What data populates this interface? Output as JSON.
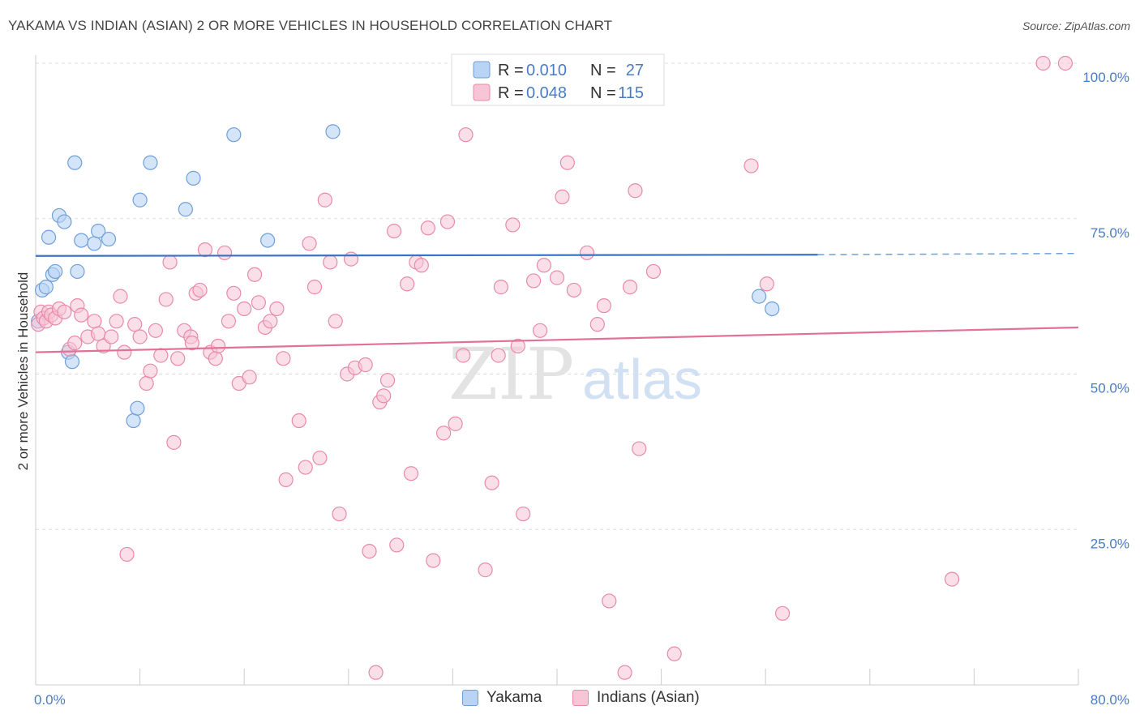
{
  "title": "YAKAMA VS INDIAN (ASIAN) 2 OR MORE VEHICLES IN HOUSEHOLD CORRELATION CHART",
  "source": "Source: ZipAtlas.com",
  "watermark": {
    "zip": "ZIP",
    "atlas": "atlas"
  },
  "colors": {
    "yakama_fill": "#b9d3f5",
    "yakama_stroke": "#6f9fd8",
    "yakama_line": "#3a73c2",
    "indian_fill": "#f7c5d6",
    "indian_stroke": "#e88aa8",
    "indian_line": "#e2719a",
    "tick_text": "#4a7cc4",
    "grid": "#dddddd"
  },
  "legend": {
    "rows": [
      {
        "r_label": "R = ",
        "r_value": "0.010",
        "n_label": "N = ",
        "n_value": "27"
      },
      {
        "r_label": "R = ",
        "r_value": "0.048",
        "n_label": "N = ",
        "n_value": "115"
      }
    ]
  },
  "bottom_legend": {
    "yakama": "Yakama",
    "indian": "Indians (Asian)"
  },
  "chart_data": {
    "type": "scatter",
    "xlabel": "",
    "ylabel": "2 or more Vehicles in Household",
    "xlim": [
      0,
      80
    ],
    "ylim": [
      0,
      100
    ],
    "x_tick_labels": [
      "0.0%",
      "80.0%"
    ],
    "y_ticks": [
      25,
      50,
      75,
      100
    ],
    "y_tick_labels": [
      "25.0%",
      "50.0%",
      "75.0%",
      "100.0%"
    ],
    "grid": true,
    "legend_position": "top-center",
    "series": [
      {
        "name": "Yakama",
        "trend": {
          "x": [
            0,
            60
          ],
          "y": [
            69.0,
            69.2
          ],
          "dashed_to": [
            80,
            69.4
          ]
        },
        "points": [
          [
            0.2,
            58.5
          ],
          [
            0.5,
            63.5
          ],
          [
            0.8,
            64.0
          ],
          [
            1.0,
            72.0
          ],
          [
            1.3,
            66.0
          ],
          [
            1.5,
            66.5
          ],
          [
            1.8,
            75.5
          ],
          [
            2.2,
            74.5
          ],
          [
            2.5,
            53.5
          ],
          [
            2.8,
            52.0
          ],
          [
            3.0,
            84.0
          ],
          [
            3.2,
            66.5
          ],
          [
            3.5,
            71.5
          ],
          [
            4.5,
            71.0
          ],
          [
            4.8,
            73.0
          ],
          [
            5.6,
            71.7
          ],
          [
            7.5,
            42.5
          ],
          [
            7.8,
            44.5
          ],
          [
            8.0,
            78.0
          ],
          [
            8.8,
            84.0
          ],
          [
            11.5,
            76.5
          ],
          [
            12.1,
            81.5
          ],
          [
            15.2,
            88.5
          ],
          [
            17.8,
            71.5
          ],
          [
            22.8,
            89.0
          ],
          [
            55.5,
            62.5
          ],
          [
            56.5,
            60.5
          ]
        ]
      },
      {
        "name": "Indians (Asian)",
        "trend": {
          "x": [
            0,
            80
          ],
          "y": [
            53.5,
            57.5
          ]
        },
        "points": [
          [
            0.2,
            58.0
          ],
          [
            0.4,
            60.0
          ],
          [
            0.6,
            59.0
          ],
          [
            0.8,
            58.5
          ],
          [
            1.0,
            60.0
          ],
          [
            1.2,
            59.5
          ],
          [
            1.5,
            59.0
          ],
          [
            1.8,
            60.5
          ],
          [
            2.2,
            60.0
          ],
          [
            2.6,
            54.0
          ],
          [
            3.0,
            55.0
          ],
          [
            3.2,
            61.0
          ],
          [
            3.5,
            59.5
          ],
          [
            4.0,
            56.0
          ],
          [
            4.5,
            58.5
          ],
          [
            4.8,
            56.5
          ],
          [
            5.2,
            54.5
          ],
          [
            5.8,
            56.0
          ],
          [
            6.2,
            58.5
          ],
          [
            6.5,
            62.5
          ],
          [
            6.8,
            53.5
          ],
          [
            7.0,
            21.0
          ],
          [
            7.6,
            58.0
          ],
          [
            8.0,
            56.0
          ],
          [
            8.5,
            48.5
          ],
          [
            8.8,
            50.5
          ],
          [
            9.2,
            57.0
          ],
          [
            9.6,
            53.0
          ],
          [
            10.0,
            62.0
          ],
          [
            10.3,
            68.0
          ],
          [
            10.6,
            39.0
          ],
          [
            10.9,
            52.5
          ],
          [
            11.4,
            57.0
          ],
          [
            11.9,
            56.0
          ],
          [
            12.3,
            63.0
          ],
          [
            12.6,
            63.5
          ],
          [
            13.0,
            70.0
          ],
          [
            13.4,
            53.5
          ],
          [
            13.8,
            52.5
          ],
          [
            14.0,
            54.5
          ],
          [
            14.5,
            69.5
          ],
          [
            14.8,
            58.5
          ],
          [
            15.2,
            63.0
          ],
          [
            15.6,
            48.5
          ],
          [
            16.0,
            60.5
          ],
          [
            16.4,
            49.5
          ],
          [
            16.8,
            66.0
          ],
          [
            17.1,
            61.5
          ],
          [
            17.6,
            57.5
          ],
          [
            18.0,
            58.5
          ],
          [
            18.5,
            60.5
          ],
          [
            19.0,
            52.5
          ],
          [
            19.2,
            33.0
          ],
          [
            20.2,
            42.5
          ],
          [
            20.7,
            35.0
          ],
          [
            21.0,
            71.0
          ],
          [
            21.4,
            64.0
          ],
          [
            21.8,
            36.5
          ],
          [
            22.2,
            78.0
          ],
          [
            22.6,
            68.0
          ],
          [
            23.0,
            58.5
          ],
          [
            23.3,
            27.5
          ],
          [
            23.9,
            50.0
          ],
          [
            24.2,
            68.5
          ],
          [
            24.5,
            51.0
          ],
          [
            25.3,
            51.5
          ],
          [
            25.6,
            21.5
          ],
          [
            26.1,
            2.0
          ],
          [
            26.4,
            45.5
          ],
          [
            26.7,
            46.5
          ],
          [
            27.0,
            49.0
          ],
          [
            27.5,
            73.0
          ],
          [
            27.7,
            22.5
          ],
          [
            28.5,
            64.5
          ],
          [
            28.8,
            34.0
          ],
          [
            29.2,
            68.0
          ],
          [
            29.6,
            67.5
          ],
          [
            30.1,
            73.5
          ],
          [
            30.5,
            20.0
          ],
          [
            31.3,
            40.5
          ],
          [
            31.6,
            74.5
          ],
          [
            32.2,
            42.0
          ],
          [
            32.8,
            53.0
          ],
          [
            33.0,
            88.5
          ],
          [
            34.5,
            18.5
          ],
          [
            35.0,
            32.5
          ],
          [
            35.5,
            53.0
          ],
          [
            35.7,
            64.0
          ],
          [
            36.6,
            74.0
          ],
          [
            37.0,
            54.5
          ],
          [
            37.4,
            27.5
          ],
          [
            38.2,
            65.0
          ],
          [
            38.7,
            57.0
          ],
          [
            39.0,
            67.5
          ],
          [
            40.0,
            65.5
          ],
          [
            40.4,
            78.5
          ],
          [
            40.8,
            84.0
          ],
          [
            41.3,
            63.5
          ],
          [
            42.3,
            69.5
          ],
          [
            43.1,
            58.0
          ],
          [
            43.6,
            61.0
          ],
          [
            44.0,
            13.5
          ],
          [
            45.2,
            2.0
          ],
          [
            45.6,
            64.0
          ],
          [
            46.0,
            79.5
          ],
          [
            46.3,
            38.0
          ],
          [
            47.4,
            66.5
          ],
          [
            49.0,
            5.0
          ],
          [
            54.9,
            83.5
          ],
          [
            56.1,
            64.5
          ],
          [
            57.3,
            11.5
          ],
          [
            70.3,
            17.0
          ],
          [
            77.3,
            100.0
          ],
          [
            79.0,
            100.0
          ],
          [
            12.0,
            55.0
          ]
        ]
      }
    ]
  }
}
